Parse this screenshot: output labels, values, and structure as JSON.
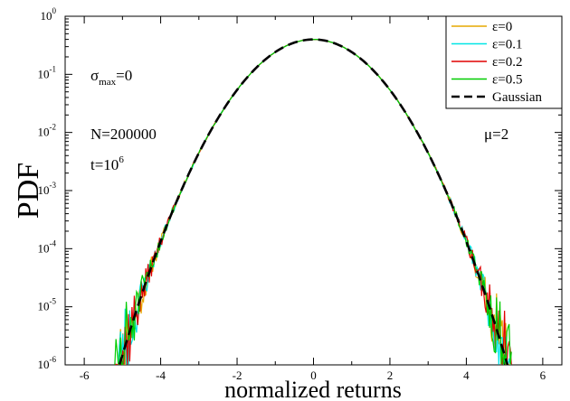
{
  "chart_data": {
    "type": "line",
    "xlabel": "normalized returns",
    "ylabel": "PDF",
    "xlim": [
      -6.5,
      6.5
    ],
    "ylim": [
      1e-06,
      1
    ],
    "yscale": "log",
    "x_ticks": [
      -6,
      -4,
      -2,
      0,
      2,
      4,
      6
    ],
    "y_ticks": [
      {
        "value": 1,
        "base": "10",
        "exp": "0"
      },
      {
        "value": 0.1,
        "base": "10",
        "exp": "-1"
      },
      {
        "value": 0.01,
        "base": "10",
        "exp": "-2"
      },
      {
        "value": 0.001,
        "base": "10",
        "exp": "-3"
      },
      {
        "value": 0.0001,
        "base": "10",
        "exp": "-4"
      },
      {
        "value": 1e-05,
        "base": "10",
        "exp": "-5"
      },
      {
        "value": 1e-06,
        "base": "10",
        "exp": "-6"
      }
    ],
    "grid": false,
    "legend_position": "top-right",
    "annotations": {
      "sigma": {
        "symbol": "σ",
        "sub": "max",
        "rest": "=0"
      },
      "n": "N=200000",
      "t": {
        "base": "t=10",
        "exp": "6"
      },
      "mu": "μ=2"
    },
    "series": [
      {
        "name": "ε=0",
        "color": "#e6a800",
        "style": "solid",
        "model": "gaussian",
        "mean": 0,
        "std": 1,
        "noise_seed": 11
      },
      {
        "name": "ε=0.1",
        "color": "#00e5e5",
        "style": "solid",
        "model": "gaussian",
        "mean": 0,
        "std": 1,
        "noise_seed": 23
      },
      {
        "name": "ε=0.2",
        "color": "#e00000",
        "style": "solid",
        "model": "gaussian",
        "mean": 0,
        "std": 1,
        "noise_seed": 37
      },
      {
        "name": "ε=0.5",
        "color": "#00cc00",
        "style": "solid",
        "model": "gaussian",
        "mean": 0,
        "std": 1,
        "noise_seed": 51
      },
      {
        "name": "Gaussian",
        "color": "#000000",
        "style": "dashed",
        "model": "gaussian",
        "mean": 0,
        "std": 1
      }
    ]
  }
}
